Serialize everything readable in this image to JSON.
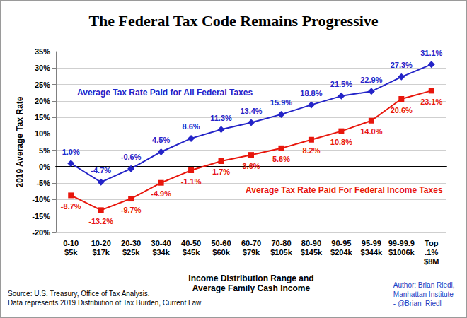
{
  "chart_data": {
    "type": "line",
    "title": "The Federal Tax Code Remains Progressive",
    "y_label": "2019 Average Tax Rate",
    "x_label": "Income Distribution Range and\nAverage Family Cash Income",
    "categories": [
      "0-10\n$5k",
      "10-20\n$17k",
      "20-30\n$25k",
      "30-40\n$34k",
      "40-50\n$45k",
      "50-60\n$60k",
      "60-70\n$79k",
      "70-80\n$105k",
      "80-90\n$145k",
      "90-95\n$204k",
      "95-99\n$344k",
      "99-99.9\n$1006k",
      "Top\n.1%\n$8M"
    ],
    "series": [
      {
        "name": "Average Tax Rate Paid for All Federal Taxes",
        "color": "#2424c8",
        "marker": "diamond",
        "values": [
          1.0,
          -4.7,
          -0.6,
          4.5,
          8.6,
          11.3,
          13.4,
          15.9,
          18.8,
          21.5,
          22.9,
          27.3,
          31.1
        ],
        "value_labels": [
          "1.0%",
          "-4.7%",
          "-0.6%",
          "4.5%",
          "8.6%",
          "11.3%",
          "13.4%",
          "15.9%",
          "18.8%",
          "21.5%",
          "22.9%",
          "27.3%",
          "31.1%"
        ]
      },
      {
        "name": "Average Tax Rate Paid For Federal Income Taxes",
        "color": "#e8160c",
        "marker": "square",
        "values": [
          -8.7,
          -13.2,
          -9.7,
          -4.9,
          -1.1,
          1.7,
          3.6,
          5.6,
          8.2,
          10.8,
          14.0,
          20.6,
          23.1
        ],
        "value_labels": [
          "-8.7%",
          "-13.2%",
          "-9.7%",
          "-4.9%",
          "-1.1%",
          "1.7%",
          "3.6%",
          "5.6%",
          "8.2%",
          "10.8%",
          "14.0%",
          "20.6%",
          "23.1%"
        ]
      }
    ],
    "ylim": [
      -20,
      35
    ],
    "yticks": [
      {
        "value": -20,
        "label": "-20%"
      },
      {
        "value": -15,
        "label": "-15%"
      },
      {
        "value": -10,
        "label": "-10%"
      },
      {
        "value": -5,
        "label": "-5%"
      },
      {
        "value": 0,
        "label": "0%"
      },
      {
        "value": 5,
        "label": "5%"
      },
      {
        "value": 10,
        "label": "10%"
      },
      {
        "value": 15,
        "label": "15%"
      },
      {
        "value": 20,
        "label": "20%"
      },
      {
        "value": 25,
        "label": "25%"
      },
      {
        "value": 30,
        "label": "30%"
      },
      {
        "value": 35,
        "label": "35%"
      }
    ],
    "grid": true,
    "data_labels": true,
    "source": [
      "Source: U.S. Treasury, Office of Tax Analysis.",
      "Data represents 2019 Distribution of Tax Burden, Current Law"
    ],
    "author": [
      "Author: Brian Riedl,",
      "Manhattan Institute -",
      "- @Brian_Riedl"
    ]
  }
}
